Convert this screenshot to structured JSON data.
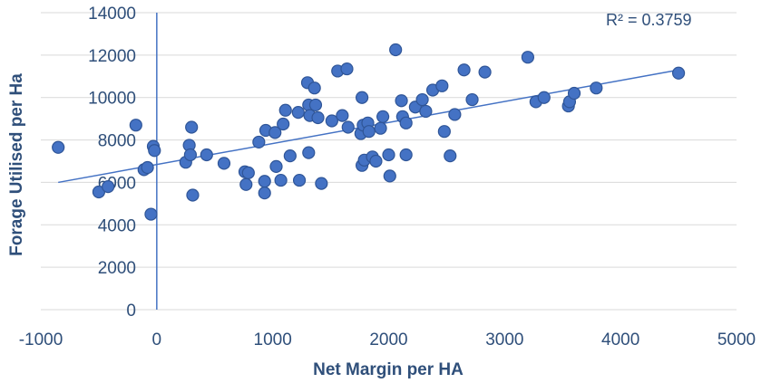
{
  "chart_data": {
    "type": "scatter",
    "title": "",
    "xlabel": "Net Margin per HA",
    "ylabel": "Forage Utilised per Ha",
    "xlim": [
      -1000,
      5000
    ],
    "ylim": [
      0,
      14000
    ],
    "x_ticks": [
      "-1000",
      "0",
      "1000",
      "2000",
      "3000",
      "4000",
      "5000"
    ],
    "y_ticks": [
      "0",
      "2000",
      "4000",
      "6000",
      "8000",
      "10000",
      "12000",
      "14000"
    ],
    "grid": "horizontal",
    "trendline": {
      "type": "linear",
      "x": [
        -850,
        4500
      ],
      "y": [
        6000,
        11300
      ],
      "label": "R² = 0.3759"
    },
    "points": [
      [
        -850,
        7650
      ],
      [
        -500,
        5550
      ],
      [
        -420,
        5800
      ],
      [
        -180,
        8700
      ],
      [
        -110,
        6600
      ],
      [
        -80,
        6700
      ],
      [
        -30,
        7700
      ],
      [
        -20,
        7500
      ],
      [
        -50,
        4500
      ],
      [
        250,
        6950
      ],
      [
        280,
        7750
      ],
      [
        290,
        7300
      ],
      [
        300,
        8600
      ],
      [
        310,
        5400
      ],
      [
        430,
        7300
      ],
      [
        580,
        6900
      ],
      [
        760,
        6500
      ],
      [
        770,
        5900
      ],
      [
        790,
        6450
      ],
      [
        880,
        7900
      ],
      [
        930,
        6050
      ],
      [
        940,
        8450
      ],
      [
        930,
        5500
      ],
      [
        1020,
        8350
      ],
      [
        1030,
        6750
      ],
      [
        1070,
        6100
      ],
      [
        1090,
        8750
      ],
      [
        1110,
        9400
      ],
      [
        1150,
        7250
      ],
      [
        1220,
        9300
      ],
      [
        1230,
        6100
      ],
      [
        1300,
        10700
      ],
      [
        1310,
        9650
      ],
      [
        1310,
        7400
      ],
      [
        1320,
        9150
      ],
      [
        1360,
        10450
      ],
      [
        1370,
        9650
      ],
      [
        1390,
        9050
      ],
      [
        1420,
        5950
      ],
      [
        1510,
        8900
      ],
      [
        1560,
        11250
      ],
      [
        1600,
        9150
      ],
      [
        1640,
        11350
      ],
      [
        1650,
        8600
      ],
      [
        1760,
        8300
      ],
      [
        1770,
        10000
      ],
      [
        1780,
        8700
      ],
      [
        1770,
        6800
      ],
      [
        1790,
        7050
      ],
      [
        1820,
        8800
      ],
      [
        1830,
        8400
      ],
      [
        1860,
        7200
      ],
      [
        1890,
        7000
      ],
      [
        1930,
        8550
      ],
      [
        1950,
        9100
      ],
      [
        2000,
        7300
      ],
      [
        2010,
        6300
      ],
      [
        2060,
        12250
      ],
      [
        2110,
        9850
      ],
      [
        2120,
        9100
      ],
      [
        2150,
        8800
      ],
      [
        2150,
        7300
      ],
      [
        2230,
        9550
      ],
      [
        2290,
        9900
      ],
      [
        2320,
        9350
      ],
      [
        2380,
        10350
      ],
      [
        2460,
        10550
      ],
      [
        2480,
        8400
      ],
      [
        2530,
        7250
      ],
      [
        2570,
        9200
      ],
      [
        2650,
        11300
      ],
      [
        2720,
        9900
      ],
      [
        2830,
        11200
      ],
      [
        3200,
        11900
      ],
      [
        3270,
        9800
      ],
      [
        3340,
        10000
      ],
      [
        3550,
        9600
      ],
      [
        3560,
        9800
      ],
      [
        3600,
        10200
      ],
      [
        3790,
        10450
      ],
      [
        4500,
        11150
      ]
    ]
  }
}
